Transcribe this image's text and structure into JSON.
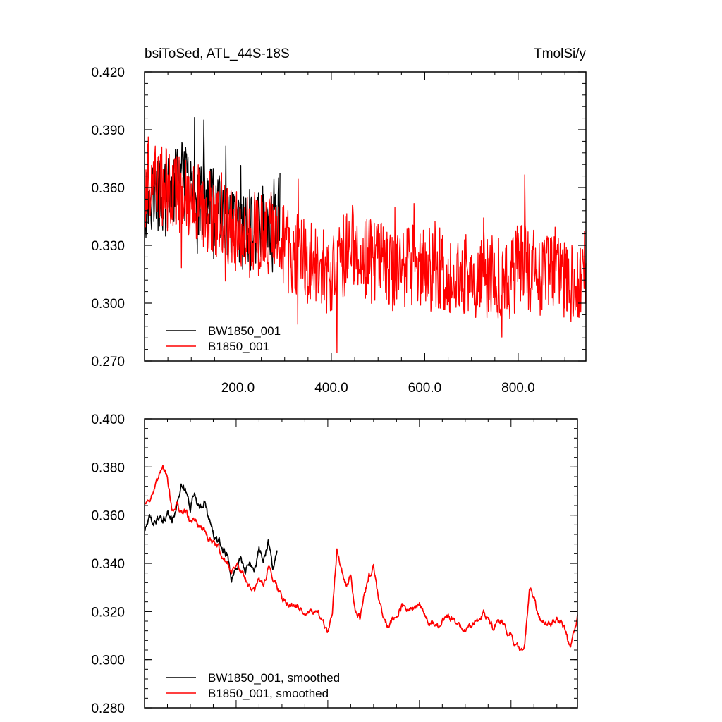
{
  "colors": {
    "series_1": "#000000",
    "series_2": "#ff0000",
    "axes": "#000000"
  },
  "chart_data": [
    {
      "type": "line",
      "title_left": "bsiToSed, ATL_44S-18S",
      "title_right": "TmolSi/y",
      "xlim": [
        0,
        945
      ],
      "ylim": [
        0.27,
        0.42
      ],
      "x_ticks": [
        200,
        400,
        600,
        800
      ],
      "x_tick_labels": [
        "200.0",
        "400.0",
        "600.0",
        "800.0"
      ],
      "y_ticks": [
        0.27,
        0.3,
        0.33,
        0.36,
        0.39,
        0.42
      ],
      "y_tick_labels": [
        "0.270",
        "0.300",
        "0.330",
        "0.360",
        "0.390",
        "0.420"
      ],
      "legend_position": "bottom-left",
      "series": [
        {
          "name": "BW1850_001",
          "x": [
            1,
            15,
            30,
            45,
            60,
            75,
            85,
            100,
            115,
            130,
            145,
            160,
            175,
            190,
            205,
            220,
            235,
            250,
            265,
            280,
            290
          ],
          "y": [
            0.352,
            0.358,
            0.356,
            0.354,
            0.357,
            0.366,
            0.362,
            0.358,
            0.355,
            0.354,
            0.351,
            0.347,
            0.342,
            0.338,
            0.335,
            0.34,
            0.337,
            0.342,
            0.339,
            0.346,
            0.35
          ],
          "amplitude": 0.02
        },
        {
          "name": "B1850_001",
          "x": [
            1,
            20,
            40,
            60,
            80,
            100,
            120,
            140,
            160,
            180,
            200,
            220,
            240,
            260,
            280,
            300,
            330,
            360,
            390,
            420,
            450,
            480,
            510,
            540,
            570,
            600,
            630,
            660,
            690,
            720,
            750,
            780,
            810,
            840,
            870,
            900,
            920,
            935,
            945
          ],
          "y": [
            0.36,
            0.365,
            0.36,
            0.357,
            0.356,
            0.355,
            0.35,
            0.348,
            0.344,
            0.34,
            0.336,
            0.334,
            0.336,
            0.334,
            0.337,
            0.328,
            0.324,
            0.32,
            0.316,
            0.322,
            0.332,
            0.322,
            0.32,
            0.316,
            0.32,
            0.317,
            0.318,
            0.314,
            0.316,
            0.313,
            0.314,
            0.312,
            0.32,
            0.315,
            0.314,
            0.312,
            0.308,
            0.312,
            0.318
          ],
          "amplitude": 0.022
        }
      ]
    },
    {
      "type": "line",
      "xlim": [
        0,
        945
      ],
      "ylim": [
        0.28,
        0.4
      ],
      "y_ticks": [
        0.28,
        0.3,
        0.32,
        0.34,
        0.36,
        0.38,
        0.4
      ],
      "y_tick_labels": [
        "0.280",
        "0.300",
        "0.320",
        "0.340",
        "0.360",
        "0.380",
        "0.400"
      ],
      "legend_position": "bottom-left",
      "series": [
        {
          "name": "BW1850_001, smoothed",
          "x": [
            1,
            10,
            20,
            30,
            40,
            50,
            60,
            70,
            80,
            90,
            100,
            110,
            120,
            130,
            140,
            150,
            160,
            170,
            180,
            190,
            200,
            210,
            220,
            230,
            240,
            250,
            260,
            270,
            280,
            290
          ],
          "y": [
            0.354,
            0.358,
            0.357,
            0.359,
            0.356,
            0.361,
            0.358,
            0.365,
            0.371,
            0.369,
            0.364,
            0.37,
            0.362,
            0.366,
            0.358,
            0.352,
            0.349,
            0.346,
            0.344,
            0.334,
            0.338,
            0.343,
            0.336,
            0.342,
            0.339,
            0.345,
            0.341,
            0.35,
            0.338,
            0.344
          ],
          "amplitude": 0.0025
        },
        {
          "name": "B1850_001, smoothed",
          "x": [
            1,
            10,
            20,
            30,
            40,
            50,
            60,
            70,
            80,
            90,
            100,
            110,
            120,
            130,
            140,
            150,
            160,
            170,
            180,
            190,
            200,
            210,
            220,
            230,
            240,
            250,
            260,
            270,
            280,
            290,
            300,
            310,
            320,
            340,
            360,
            380,
            400,
            410,
            420,
            430,
            440,
            450,
            460,
            470,
            480,
            490,
            500,
            510,
            520,
            530,
            540,
            560,
            580,
            600,
            620,
            640,
            660,
            680,
            700,
            720,
            740,
            760,
            780,
            800,
            820,
            830,
            840,
            850,
            860,
            880,
            900,
            920,
            930,
            945
          ],
          "y": [
            0.365,
            0.367,
            0.37,
            0.374,
            0.382,
            0.376,
            0.362,
            0.365,
            0.36,
            0.362,
            0.357,
            0.359,
            0.355,
            0.354,
            0.35,
            0.348,
            0.347,
            0.343,
            0.34,
            0.337,
            0.34,
            0.336,
            0.334,
            0.33,
            0.328,
            0.333,
            0.332,
            0.338,
            0.335,
            0.33,
            0.326,
            0.324,
            0.323,
            0.321,
            0.32,
            0.318,
            0.311,
            0.32,
            0.346,
            0.338,
            0.332,
            0.335,
            0.32,
            0.317,
            0.328,
            0.335,
            0.338,
            0.326,
            0.318,
            0.314,
            0.316,
            0.322,
            0.32,
            0.323,
            0.316,
            0.313,
            0.318,
            0.316,
            0.312,
            0.315,
            0.319,
            0.314,
            0.316,
            0.31,
            0.303,
            0.306,
            0.33,
            0.326,
            0.318,
            0.314,
            0.318,
            0.311,
            0.303,
            0.318
          ],
          "amplitude": 0.002
        }
      ]
    }
  ]
}
